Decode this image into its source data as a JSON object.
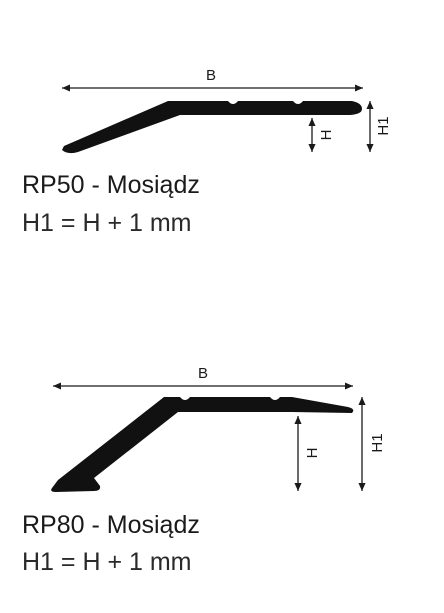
{
  "profiles": [
    {
      "dimensions": {
        "width_label": "B",
        "height_label": "H",
        "total_height_label": "H1"
      },
      "caption": {
        "title": "RP50 - Mosiądz",
        "formula": "H1 = H + 1 mm"
      }
    },
    {
      "dimensions": {
        "width_label": "B",
        "height_label": "H",
        "total_height_label": "H1"
      },
      "caption": {
        "title": "RP80 - Mosiądz",
        "formula": "H1 = H + 1 mm"
      }
    }
  ],
  "colors": {
    "profile_fill": "#111111",
    "dimension_line": "#1a1a1a"
  }
}
